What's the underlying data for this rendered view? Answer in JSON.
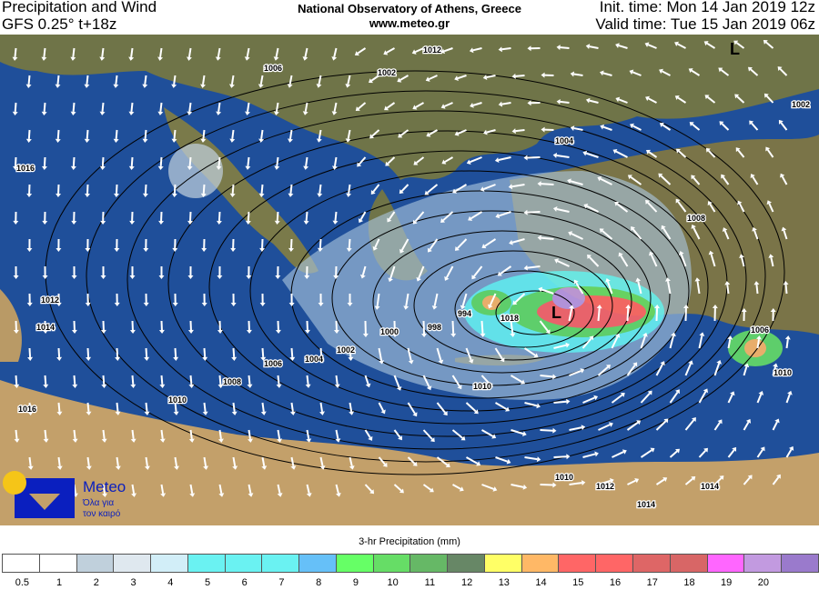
{
  "header": {
    "title_line1": "Precipitation and Wind",
    "title_line2": "GFS 0.25° t+18z",
    "center_line1": "National Observatory of Athens, Greece",
    "center_line2": "www.meteo.gr",
    "init_time": "Init. time: Mon 14 Jan 2019 12z",
    "valid_time": "Valid time: Tue 15 Jan 2019 06z"
  },
  "map": {
    "isobar_labels": [
      "1016",
      "1014",
      "1012",
      "1010",
      "1008",
      "1006",
      "1004",
      "1002",
      "1000",
      "998",
      "994",
      "1018",
      "1016",
      "1012",
      "1010",
      "1014",
      "1008",
      "1006",
      "1004",
      "1002",
      "1010",
      "1012",
      "1014",
      "1006",
      "1010",
      "1002"
    ],
    "low_marker": "L",
    "colors": {
      "sea": "#1f4f9a",
      "deep_sea": "#0d2f6a",
      "land": "#6f7448",
      "desert": "#c3a06a",
      "arrow": "#ffffff",
      "isobar": "#000000"
    }
  },
  "logo": {
    "name": "Meteo",
    "tagline1": "Όλα για",
    "tagline2": "τον καιρό",
    "colors": {
      "sun": "#f5c518",
      "m": "#0a1fbf"
    }
  },
  "legend": {
    "title": "3-hr Precipitation (mm)",
    "labels": [
      "0.5",
      "1",
      "2",
      "3",
      "4",
      "5",
      "6",
      "7",
      "8",
      "9",
      "10",
      "11",
      "12",
      "13",
      "14",
      "15",
      "16",
      "17",
      "18",
      "19",
      "20"
    ],
    "colors": [
      "#ffffff",
      "#ffffff",
      "#c0d0dc",
      "#dfe8ef",
      "#d2eef8",
      "#6af2f2",
      "#6af2f2",
      "#6af2f2",
      "#66c0f8",
      "#66ff66",
      "#66dd66",
      "#66b866",
      "#678766",
      "#ffff66",
      "#ffb866",
      "#ff6666",
      "#ff6666",
      "#de6666",
      "#d86666",
      "#ff66ff",
      "#c29ae0",
      "#9a7acc"
    ]
  }
}
